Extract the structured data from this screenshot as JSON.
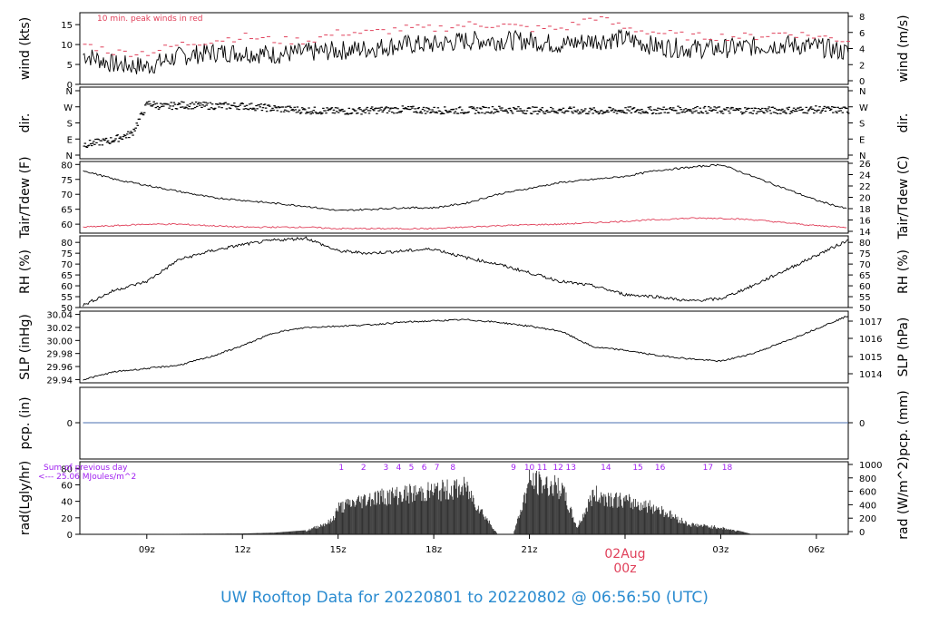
{
  "title": "UW Rooftop Data for 20220801  to  20220802 @ 06:56:50  (UTC)",
  "colors": {
    "title": "#2a8bd0",
    "peak": "#e0405a",
    "dew": "#e0405a",
    "pcp_line": "#4a6fb0",
    "rad_annot": "#a020f0",
    "date": "#e0405a",
    "axis": "#000000"
  },
  "chart_data": [
    {
      "id": "wind",
      "type": "line",
      "ylabel": "wind (kts)",
      "ylabel_right": "wind (m/s)",
      "ylim": [
        0,
        18
      ],
      "yticks": [
        0,
        5,
        10,
        15
      ],
      "yticks_right": [
        0,
        2,
        4,
        6,
        8
      ],
      "annotation": "10 min. peak winds in red",
      "series": [
        {
          "x": [
            7,
            8,
            9,
            10,
            11,
            12,
            13,
            14,
            15,
            16,
            17,
            18,
            19,
            20,
            21,
            22,
            23,
            24,
            25,
            26,
            27,
            28,
            29,
            30,
            31
          ],
          "y": [
            7.5,
            5,
            4.5,
            7,
            8,
            8,
            7.5,
            8,
            8.5,
            9,
            10,
            10,
            11,
            11,
            11,
            10,
            11,
            11.5,
            9.5,
            9,
            9,
            9.5,
            10,
            9.5,
            8
          ]
        },
        {
          "x": [
            7,
            8,
            9,
            10,
            11,
            12,
            13,
            14,
            15,
            16,
            17,
            18,
            19,
            20,
            21,
            22,
            23,
            24,
            25,
            26,
            27,
            28,
            29,
            30,
            31
          ],
          "y": [
            10,
            8,
            8,
            10,
            11,
            12,
            11,
            11,
            13,
            13,
            14,
            14,
            15,
            15,
            14,
            14,
            17,
            14,
            13,
            12,
            12,
            12,
            13,
            12,
            11
          ]
        }
      ]
    },
    {
      "id": "dir",
      "type": "scatter",
      "ylabel": "dir.",
      "ylabel_right": "dir.",
      "yticks": [
        "N",
        "E",
        "S",
        "W",
        "N"
      ],
      "yticks_right": [
        "N",
        "E",
        "S",
        "W",
        "N"
      ],
      "series": [
        {
          "x": [
            7,
            7.8,
            8.5,
            9,
            9.5,
            10,
            11,
            12,
            13,
            14,
            15,
            16,
            17,
            18,
            19,
            20,
            21,
            22,
            23,
            24,
            25,
            26,
            27,
            28,
            29,
            30,
            31
          ],
          "y": [
            60,
            80,
            120,
            290,
            270,
            280,
            275,
            275,
            260,
            250,
            245,
            250,
            255,
            250,
            250,
            255,
            250,
            250,
            245,
            250,
            250,
            255,
            250,
            250,
            250,
            255,
            250
          ]
        }
      ]
    },
    {
      "id": "temp",
      "type": "line",
      "ylabel": "Tair/Tdew (F)",
      "ylabel_right": "Tair/Tdew (C)",
      "ylim": [
        57,
        81
      ],
      "yticks": [
        60,
        65,
        70,
        75,
        80
      ],
      "yticks_right": [
        14,
        16,
        18,
        20,
        22,
        24,
        26
      ],
      "series": [
        {
          "name": "Tair",
          "x": [
            7,
            8,
            9,
            10,
            11,
            12,
            13,
            14,
            15,
            16,
            17,
            18,
            19,
            20,
            21,
            22,
            23,
            24,
            25,
            26,
            27,
            28,
            29,
            30,
            31
          ],
          "y": [
            78,
            75,
            73,
            71,
            69,
            68,
            67,
            66,
            64.5,
            65,
            65.5,
            65.5,
            67,
            70,
            72,
            74,
            75,
            76,
            78,
            79,
            80,
            76,
            72,
            68,
            65
          ]
        },
        {
          "name": "Tdew",
          "x": [
            7,
            8,
            9,
            10,
            11,
            12,
            13,
            14,
            15,
            16,
            17,
            18,
            19,
            20,
            21,
            22,
            23,
            24,
            25,
            26,
            27,
            28,
            29,
            30,
            31
          ],
          "y": [
            59,
            59.5,
            60,
            60,
            59.5,
            59,
            59,
            59,
            58.5,
            58.5,
            58.5,
            58.5,
            59,
            59.5,
            59.8,
            60,
            60.5,
            61,
            61.5,
            62,
            62,
            61.5,
            60.5,
            59.5,
            59
          ]
        }
      ]
    },
    {
      "id": "rh",
      "type": "line",
      "ylabel": "RH (%)",
      "ylabel_right": "RH (%)",
      "ylim": [
        50,
        83
      ],
      "yticks": [
        50,
        55,
        60,
        65,
        70,
        75,
        80
      ],
      "yticks_right": [
        50,
        55,
        60,
        65,
        70,
        75,
        80
      ],
      "series": [
        {
          "x": [
            7,
            8,
            9,
            10,
            11,
            12,
            13,
            14,
            15,
            16,
            17,
            18,
            19,
            20,
            21,
            22,
            23,
            24,
            25,
            26,
            27,
            28,
            29,
            30,
            31
          ],
          "y": [
            51,
            58,
            62,
            72,
            76,
            79,
            81,
            82,
            76,
            75,
            76,
            77,
            73,
            70,
            66,
            62,
            60,
            56,
            55,
            53,
            54,
            60,
            67,
            74,
            81
          ]
        }
      ]
    },
    {
      "id": "slp",
      "type": "line",
      "ylabel": "SLP (inHg)",
      "ylabel_right": "SLP (hPa)",
      "ylim": [
        29.935,
        30.045
      ],
      "yticks": [
        29.94,
        29.96,
        29.98,
        30.0,
        30.02,
        30.04
      ],
      "ytick_labels": [
        "29.94",
        "29.96",
        "29.98",
        "30.00",
        "30.02",
        "30.04"
      ],
      "yticks_right": [
        1014,
        1015,
        1016,
        1017
      ],
      "series": [
        {
          "x": [
            7,
            8,
            9,
            10,
            11,
            12,
            13,
            14,
            15,
            16,
            17,
            18,
            19,
            20,
            21,
            22,
            23,
            24,
            25,
            26,
            27,
            28,
            29,
            30,
            31
          ],
          "y": [
            29.94,
            29.952,
            29.957,
            29.962,
            29.975,
            29.992,
            30.012,
            30.02,
            30.022,
            30.024,
            30.028,
            30.03,
            30.032,
            30.028,
            30.022,
            30.014,
            29.99,
            29.985,
            29.977,
            29.972,
            29.968,
            29.98,
            29.998,
            30.018,
            30.038
          ]
        }
      ]
    },
    {
      "id": "pcp",
      "type": "line",
      "ylabel": "pcp. (in)",
      "ylabel_right": "pcp. (mm)",
      "yticks": [
        0
      ],
      "yticks_right": [
        0
      ],
      "series": [
        {
          "x": [
            7,
            31
          ],
          "y": [
            0,
            0
          ]
        }
      ]
    },
    {
      "id": "rad",
      "type": "area",
      "ylabel": "rad(Lgly/hr)",
      "ylabel_right": "rad (W/m^2)",
      "ylim": [
        0,
        88
      ],
      "yticks": [
        0,
        20,
        40,
        60,
        80
      ],
      "yticks_right": [
        0,
        200,
        400,
        600,
        800,
        1000
      ],
      "annotation_lines": [
        "Sum of previous day",
        "<--- 25.06 MJoules/m^2"
      ],
      "markers": [
        "1",
        "2",
        "3",
        "4",
        "5",
        "6",
        "7",
        "8",
        "9",
        "10",
        "11",
        "12",
        "13",
        "14",
        "15",
        "16",
        "17",
        "18"
      ],
      "series": [
        {
          "x": [
            7,
            12,
            13,
            14,
            14.8,
            15,
            16,
            17,
            18,
            19,
            20,
            20.5,
            21,
            22,
            22.5,
            23,
            24,
            25,
            26,
            27,
            28,
            29,
            30,
            31
          ],
          "y": [
            0,
            1,
            2,
            5,
            20,
            40,
            55,
            60,
            65,
            70,
            0,
            0,
            80,
            70,
            10,
            60,
            50,
            40,
            15,
            10,
            0,
            0,
            0,
            0
          ]
        }
      ],
      "xlim": [
        6.9,
        31
      ],
      "xticks": [
        9,
        12,
        15,
        18,
        21,
        27,
        30
      ],
      "xtick_labels": [
        "09z",
        "12z",
        "15z",
        "18z",
        "21z",
        "03z",
        "06z"
      ],
      "date_label": "02Aug",
      "date_tick_label": "00z"
    }
  ]
}
